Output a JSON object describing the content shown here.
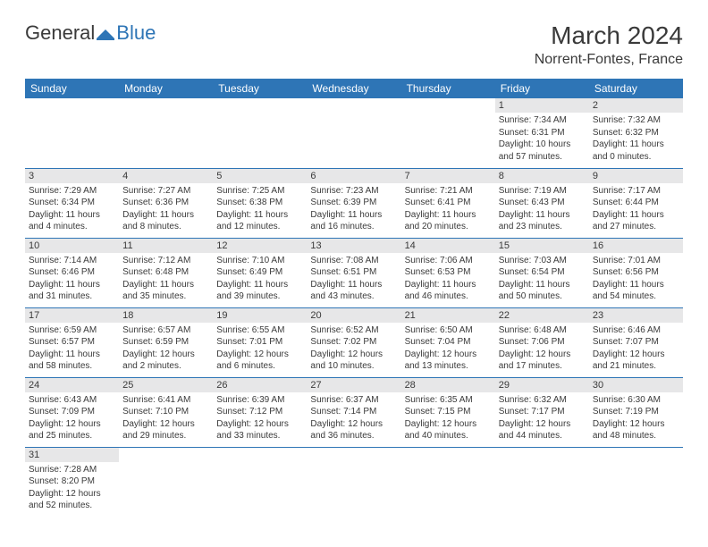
{
  "colors": {
    "header_bg": "#2e75b6",
    "header_text": "#ffffff",
    "daynum_bg": "#e7e7e8",
    "text": "#3a3a3a",
    "rule": "#2e75b6",
    "page_bg": "#ffffff"
  },
  "logo": {
    "word1": "General",
    "word2": "Blue"
  },
  "title": "March 2024",
  "location": "Norrent-Fontes, France",
  "dayNames": [
    "Sunday",
    "Monday",
    "Tuesday",
    "Wednesday",
    "Thursday",
    "Friday",
    "Saturday"
  ],
  "weeks": [
    [
      null,
      null,
      null,
      null,
      null,
      {
        "n": "1",
        "sunrise": "7:34 AM",
        "sunset": "6:31 PM",
        "dlH": 10,
        "dlM": 57
      },
      {
        "n": "2",
        "sunrise": "7:32 AM",
        "sunset": "6:32 PM",
        "dlH": 11,
        "dlM": 0
      }
    ],
    [
      {
        "n": "3",
        "sunrise": "7:29 AM",
        "sunset": "6:34 PM",
        "dlH": 11,
        "dlM": 4
      },
      {
        "n": "4",
        "sunrise": "7:27 AM",
        "sunset": "6:36 PM",
        "dlH": 11,
        "dlM": 8
      },
      {
        "n": "5",
        "sunrise": "7:25 AM",
        "sunset": "6:38 PM",
        "dlH": 11,
        "dlM": 12
      },
      {
        "n": "6",
        "sunrise": "7:23 AM",
        "sunset": "6:39 PM",
        "dlH": 11,
        "dlM": 16
      },
      {
        "n": "7",
        "sunrise": "7:21 AM",
        "sunset": "6:41 PM",
        "dlH": 11,
        "dlM": 20
      },
      {
        "n": "8",
        "sunrise": "7:19 AM",
        "sunset": "6:43 PM",
        "dlH": 11,
        "dlM": 23
      },
      {
        "n": "9",
        "sunrise": "7:17 AM",
        "sunset": "6:44 PM",
        "dlH": 11,
        "dlM": 27
      }
    ],
    [
      {
        "n": "10",
        "sunrise": "7:14 AM",
        "sunset": "6:46 PM",
        "dlH": 11,
        "dlM": 31
      },
      {
        "n": "11",
        "sunrise": "7:12 AM",
        "sunset": "6:48 PM",
        "dlH": 11,
        "dlM": 35
      },
      {
        "n": "12",
        "sunrise": "7:10 AM",
        "sunset": "6:49 PM",
        "dlH": 11,
        "dlM": 39
      },
      {
        "n": "13",
        "sunrise": "7:08 AM",
        "sunset": "6:51 PM",
        "dlH": 11,
        "dlM": 43
      },
      {
        "n": "14",
        "sunrise": "7:06 AM",
        "sunset": "6:53 PM",
        "dlH": 11,
        "dlM": 46
      },
      {
        "n": "15",
        "sunrise": "7:03 AM",
        "sunset": "6:54 PM",
        "dlH": 11,
        "dlM": 50
      },
      {
        "n": "16",
        "sunrise": "7:01 AM",
        "sunset": "6:56 PM",
        "dlH": 11,
        "dlM": 54
      }
    ],
    [
      {
        "n": "17",
        "sunrise": "6:59 AM",
        "sunset": "6:57 PM",
        "dlH": 11,
        "dlM": 58
      },
      {
        "n": "18",
        "sunrise": "6:57 AM",
        "sunset": "6:59 PM",
        "dlH": 12,
        "dlM": 2
      },
      {
        "n": "19",
        "sunrise": "6:55 AM",
        "sunset": "7:01 PM",
        "dlH": 12,
        "dlM": 6
      },
      {
        "n": "20",
        "sunrise": "6:52 AM",
        "sunset": "7:02 PM",
        "dlH": 12,
        "dlM": 10
      },
      {
        "n": "21",
        "sunrise": "6:50 AM",
        "sunset": "7:04 PM",
        "dlH": 12,
        "dlM": 13
      },
      {
        "n": "22",
        "sunrise": "6:48 AM",
        "sunset": "7:06 PM",
        "dlH": 12,
        "dlM": 17
      },
      {
        "n": "23",
        "sunrise": "6:46 AM",
        "sunset": "7:07 PM",
        "dlH": 12,
        "dlM": 21
      }
    ],
    [
      {
        "n": "24",
        "sunrise": "6:43 AM",
        "sunset": "7:09 PM",
        "dlH": 12,
        "dlM": 25
      },
      {
        "n": "25",
        "sunrise": "6:41 AM",
        "sunset": "7:10 PM",
        "dlH": 12,
        "dlM": 29
      },
      {
        "n": "26",
        "sunrise": "6:39 AM",
        "sunset": "7:12 PM",
        "dlH": 12,
        "dlM": 33
      },
      {
        "n": "27",
        "sunrise": "6:37 AM",
        "sunset": "7:14 PM",
        "dlH": 12,
        "dlM": 36
      },
      {
        "n": "28",
        "sunrise": "6:35 AM",
        "sunset": "7:15 PM",
        "dlH": 12,
        "dlM": 40
      },
      {
        "n": "29",
        "sunrise": "6:32 AM",
        "sunset": "7:17 PM",
        "dlH": 12,
        "dlM": 44
      },
      {
        "n": "30",
        "sunrise": "6:30 AM",
        "sunset": "7:19 PM",
        "dlH": 12,
        "dlM": 48
      }
    ],
    [
      {
        "n": "31",
        "sunrise": "7:28 AM",
        "sunset": "8:20 PM",
        "dlH": 12,
        "dlM": 52
      },
      null,
      null,
      null,
      null,
      null,
      null
    ]
  ]
}
